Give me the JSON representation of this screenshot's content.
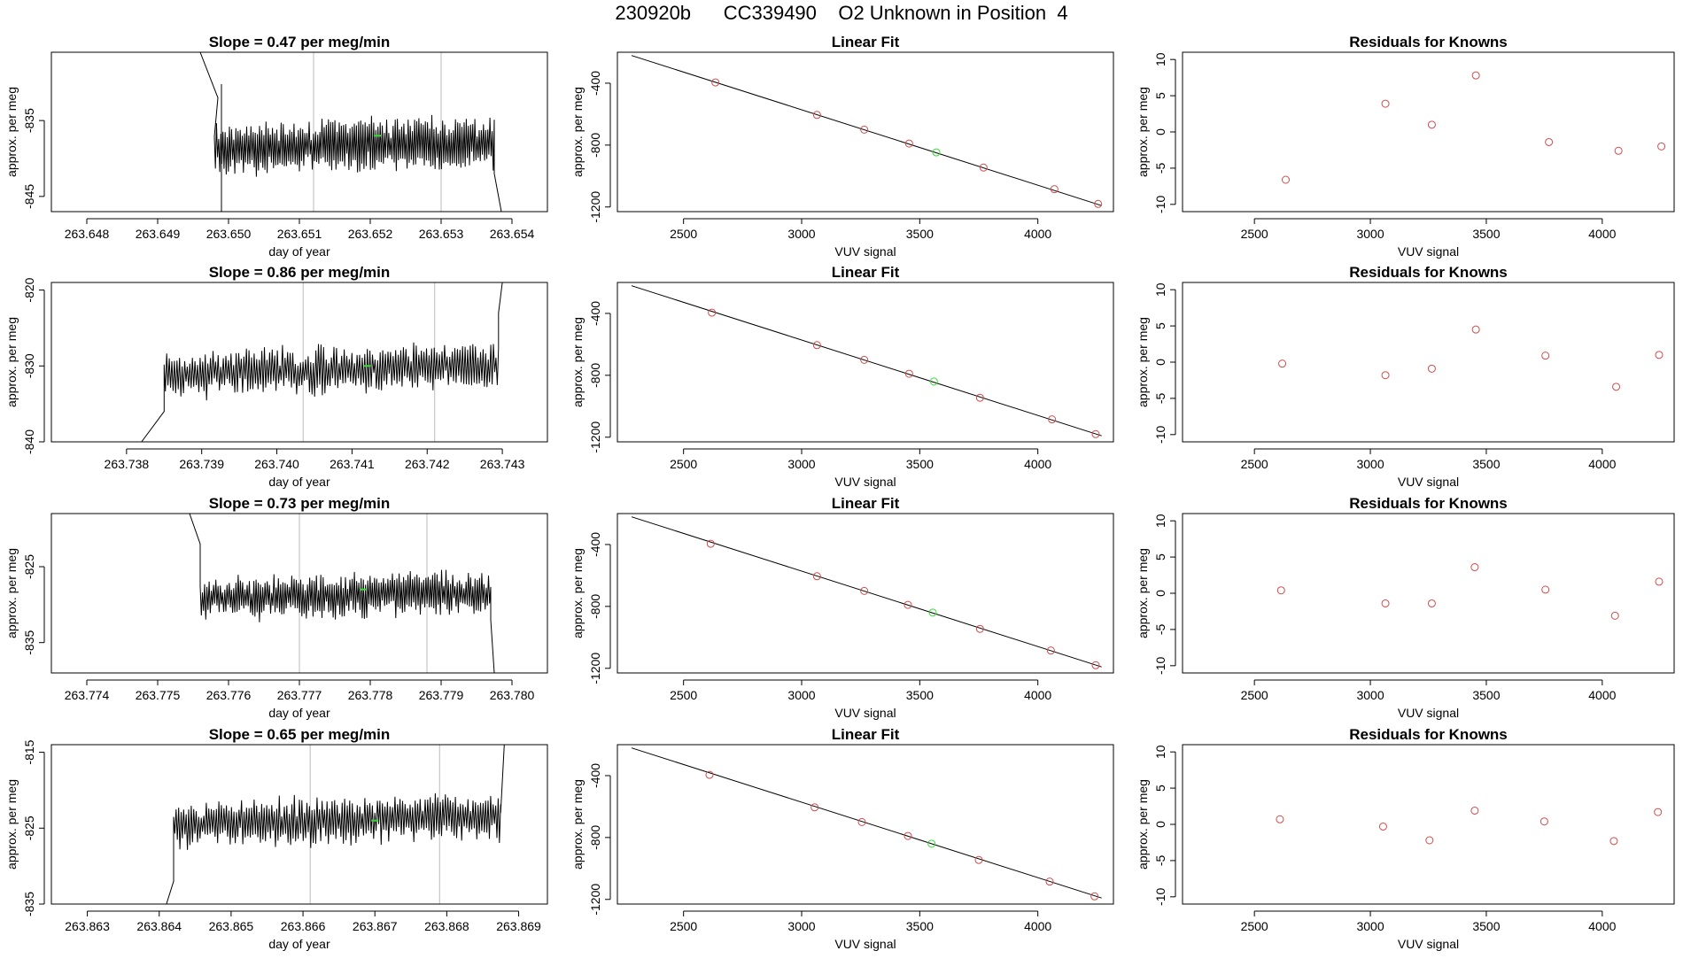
{
  "page": {
    "title": "230920b      CC339490    O2 Unknown in Position  4"
  },
  "colors": {
    "series": "#000000",
    "known": "#d14b4b",
    "unknown": "#33dd33",
    "vline": "#bbbbbb",
    "axis": "#000000"
  },
  "chart_data": [
    {
      "type": "line",
      "title": "Slope =  0.47  per meg/min",
      "xlabel": "day of year",
      "ylabel": "approx. per meg",
      "xlim": [
        263.6475,
        263.6545
      ],
      "ylim": [
        -847,
        -826
      ],
      "xticks": [
        263.648,
        263.649,
        263.65,
        263.651,
        263.652,
        263.653,
        263.654
      ],
      "xtick_labels": [
        "263.648",
        "263.649",
        "263.650",
        "263.651",
        "263.652",
        "263.653",
        "263.654"
      ],
      "yticks": [
        -845,
        -835
      ],
      "ytick_labels": [
        "-845",
        "-835"
      ],
      "trace": {
        "x_start": 263.6498,
        "x_end": 263.65375,
        "mean": -838.2,
        "trend": 0.8,
        "amp": 3.2,
        "seed": 11
      },
      "entry": {
        "x": [
          263.6496,
          263.64985
        ],
        "y": [
          -826,
          -832
        ]
      },
      "exit": {
        "x": [
          263.65375,
          263.65385
        ],
        "y": [
          -842,
          -847
        ]
      },
      "vlines": [
        263.6512,
        263.653
      ],
      "drop_lines": [
        263.6499
      ],
      "marker": {
        "x": 263.6521,
        "y": -837
      }
    },
    {
      "type": "scatter",
      "title": "Linear Fit",
      "xlabel": "VUV signal",
      "ylabel": "approx. per meg",
      "xlim": [
        2220,
        4320
      ],
      "ylim": [
        -1230,
        -200
      ],
      "xticks": [
        2500,
        3000,
        3500,
        4000
      ],
      "xtick_labels": [
        "2500",
        "3000",
        "3500",
        "4000"
      ],
      "yticks": [
        -1200,
        -800,
        -400
      ],
      "ytick_labels": [
        "-1200",
        "-800",
        "-400"
      ],
      "fit_line": {
        "x": [
          2280,
          4270
        ],
        "y": [
          -221,
          -1191
        ]
      },
      "knowns": {
        "x": [
          2635,
          3065,
          3265,
          3455,
          3770,
          4070,
          4255
        ],
        "y": [
          -395,
          -605,
          -700,
          -790,
          -945,
          -1085,
          -1180
        ]
      },
      "unknown": {
        "x": [
          3570
        ],
        "y": [
          -847
        ]
      }
    },
    {
      "type": "scatter",
      "title": "Residuals for Knowns",
      "xlabel": "VUV signal",
      "ylabel": "approx. per meg",
      "xlim": [
        2190,
        4310
      ],
      "ylim": [
        -11,
        11
      ],
      "xticks": [
        2500,
        3000,
        3500,
        4000
      ],
      "xtick_labels": [
        "2500",
        "3000",
        "3500",
        "4000"
      ],
      "yticks": [
        -10,
        -5,
        0,
        5,
        10
      ],
      "ytick_labels": [
        "-10",
        "-5",
        "0",
        "5",
        "10"
      ],
      "points": {
        "x": [
          2635,
          3065,
          3265,
          3455,
          3770,
          4070,
          4255
        ],
        "y": [
          -6.6,
          3.9,
          1.0,
          7.8,
          -1.4,
          -2.6,
          -2.0
        ]
      }
    },
    {
      "type": "line",
      "title": "Slope =  0.86  per meg/min",
      "xlabel": "day of year",
      "ylabel": "approx. per meg",
      "xlim": [
        263.737,
        263.7436
      ],
      "ylim": [
        -840,
        -819
      ],
      "xticks": [
        263.738,
        263.739,
        263.74,
        263.741,
        263.742,
        263.743
      ],
      "xtick_labels": [
        "263.738",
        "263.739",
        "263.740",
        "263.741",
        "263.742",
        "263.743"
      ],
      "yticks": [
        -840,
        -830,
        -820
      ],
      "ytick_labels": [
        "-840",
        "-830",
        "-820"
      ],
      "trace": {
        "x_start": 263.7385,
        "x_end": 263.74295,
        "mean": -830.5,
        "trend": 1.5,
        "amp": 2.8,
        "seed": 23
      },
      "entry": {
        "x": [
          263.7376,
          263.7382,
          263.7385
        ],
        "y": [
          -840,
          -840,
          -836
        ]
      },
      "exit": {
        "x": [
          263.74295,
          263.743
        ],
        "y": [
          -823,
          -819
        ]
      },
      "vlines": [
        263.74035,
        263.7421
      ],
      "drop_lines": [],
      "marker": {
        "x": 263.7412,
        "y": -830
      }
    },
    {
      "type": "scatter",
      "title": "Linear Fit",
      "xlabel": "VUV signal",
      "ylabel": "approx. per meg",
      "xlim": [
        2220,
        4320
      ],
      "ylim": [
        -1230,
        -200
      ],
      "xticks": [
        2500,
        3000,
        3500,
        4000
      ],
      "xtick_labels": [
        "2500",
        "3000",
        "3500",
        "4000"
      ],
      "yticks": [
        -1200,
        -800,
        -400
      ],
      "ytick_labels": [
        "-1200",
        "-800",
        "-400"
      ],
      "fit_line": {
        "x": [
          2280,
          4270
        ],
        "y": [
          -221,
          -1191
        ]
      },
      "knowns": {
        "x": [
          2620,
          3065,
          3265,
          3455,
          3755,
          4060,
          4245
        ],
        "y": [
          -395,
          -605,
          -700,
          -790,
          -945,
          -1085,
          -1180
        ]
      },
      "unknown": {
        "x": [
          3560
        ],
        "y": [
          -840
        ]
      }
    },
    {
      "type": "scatter",
      "title": "Residuals for Knowns",
      "xlabel": "VUV signal",
      "ylabel": "approx. per meg",
      "xlim": [
        2190,
        4310
      ],
      "ylim": [
        -11,
        11
      ],
      "xticks": [
        2500,
        3000,
        3500,
        4000
      ],
      "xtick_labels": [
        "2500",
        "3000",
        "3500",
        "4000"
      ],
      "yticks": [
        -10,
        -5,
        0,
        5,
        10
      ],
      "ytick_labels": [
        "-10",
        "-5",
        "0",
        "5",
        "10"
      ],
      "points": {
        "x": [
          2620,
          3065,
          3265,
          3455,
          3755,
          4060,
          4245
        ],
        "y": [
          -0.2,
          -1.8,
          -0.9,
          4.5,
          0.9,
          -3.4,
          1.0
        ]
      }
    },
    {
      "type": "line",
      "title": "Slope =  0.73  per meg/min",
      "xlabel": "day of year",
      "ylabel": "approx. per meg",
      "xlim": [
        263.7735,
        263.7805
      ],
      "ylim": [
        -839,
        -818
      ],
      "xticks": [
        263.774,
        263.775,
        263.776,
        263.777,
        263.778,
        263.779,
        263.78
      ],
      "xtick_labels": [
        "263.774",
        "263.775",
        "263.776",
        "263.777",
        "263.778",
        "263.779",
        "263.780"
      ],
      "yticks": [
        -835,
        -825
      ],
      "ytick_labels": [
        "-835",
        "-825"
      ],
      "trace": {
        "x_start": 263.7756,
        "x_end": 263.7797,
        "mean": -828.8,
        "trend": 1.0,
        "amp": 2.6,
        "seed": 37
      },
      "entry": {
        "x": [
          263.77545,
          263.7756
        ],
        "y": [
          -818,
          -822
        ]
      },
      "exit": {
        "x": [
          263.7797,
          263.77975
        ],
        "y": [
          -832,
          -839
        ]
      },
      "vlines": [
        263.777,
        263.7788
      ],
      "drop_lines": [],
      "marker": {
        "x": 263.7779,
        "y": -828
      }
    },
    {
      "type": "scatter",
      "title": "Linear Fit",
      "xlabel": "VUV signal",
      "ylabel": "approx. per meg",
      "xlim": [
        2220,
        4320
      ],
      "ylim": [
        -1230,
        -200
      ],
      "xticks": [
        2500,
        3000,
        3500,
        4000
      ],
      "xtick_labels": [
        "2500",
        "3000",
        "3500",
        "4000"
      ],
      "yticks": [
        -1200,
        -800,
        -400
      ],
      "ytick_labels": [
        "-1200",
        "-800",
        "-400"
      ],
      "fit_line": {
        "x": [
          2280,
          4270
        ],
        "y": [
          -221,
          -1191
        ]
      },
      "knowns": {
        "x": [
          2615,
          3065,
          3265,
          3450,
          3755,
          4055,
          4245
        ],
        "y": [
          -395,
          -605,
          -700,
          -790,
          -945,
          -1085,
          -1180
        ]
      },
      "unknown": {
        "x": [
          3555
        ],
        "y": [
          -840
        ]
      }
    },
    {
      "type": "scatter",
      "title": "Residuals for Knowns",
      "xlabel": "VUV signal",
      "ylabel": "approx. per meg",
      "xlim": [
        2190,
        4310
      ],
      "ylim": [
        -11,
        11
      ],
      "xticks": [
        2500,
        3000,
        3500,
        4000
      ],
      "xtick_labels": [
        "2500",
        "3000",
        "3500",
        "4000"
      ],
      "yticks": [
        -10,
        -5,
        0,
        5,
        10
      ],
      "ytick_labels": [
        "-10",
        "-5",
        "0",
        "5",
        "10"
      ],
      "points": {
        "x": [
          2615,
          3065,
          3265,
          3450,
          3755,
          4055,
          4245
        ],
        "y": [
          0.4,
          -1.4,
          -1.4,
          3.6,
          0.5,
          -3.1,
          1.6
        ]
      }
    },
    {
      "type": "line",
      "title": "Slope =  0.65  per meg/min",
      "xlabel": "day of year",
      "ylabel": "approx. per meg",
      "xlim": [
        263.8625,
        263.8694
      ],
      "ylim": [
        -835,
        -814
      ],
      "xticks": [
        263.863,
        263.864,
        263.865,
        263.866,
        263.867,
        263.868,
        263.869
      ],
      "xtick_labels": [
        "263.863",
        "263.864",
        "263.865",
        "263.866",
        "263.867",
        "263.868",
        "263.869"
      ],
      "yticks": [
        -835,
        -825,
        -815
      ],
      "ytick_labels": [
        "-835",
        "-825",
        "-815"
      ],
      "trace": {
        "x_start": 263.8642,
        "x_end": 263.86875,
        "mean": -824.0,
        "trend": 1.0,
        "amp": 2.8,
        "seed": 53
      },
      "entry": {
        "x": [
          263.8641,
          263.8642
        ],
        "y": [
          -835,
          -832
        ]
      },
      "exit": {
        "x": [
          263.86875,
          263.8688
        ],
        "y": [
          -823,
          -814
        ]
      },
      "vlines": [
        263.8661,
        263.8679
      ],
      "drop_lines": [],
      "marker": {
        "x": 263.867,
        "y": -824
      }
    },
    {
      "type": "scatter",
      "title": "Linear Fit",
      "xlabel": "VUV signal",
      "ylabel": "approx. per meg",
      "xlim": [
        2220,
        4320
      ],
      "ylim": [
        -1230,
        -200
      ],
      "xticks": [
        2500,
        3000,
        3500,
        4000
      ],
      "xtick_labels": [
        "2500",
        "3000",
        "3500",
        "4000"
      ],
      "yticks": [
        -1200,
        -800,
        -400
      ],
      "ytick_labels": [
        "-1200",
        "-800",
        "-400"
      ],
      "fit_line": {
        "x": [
          2280,
          4270
        ],
        "y": [
          -221,
          -1191
        ]
      },
      "knowns": {
        "x": [
          2610,
          3055,
          3255,
          3450,
          3750,
          4050,
          4240
        ],
        "y": [
          -395,
          -605,
          -700,
          -790,
          -945,
          -1085,
          -1180
        ]
      },
      "unknown": {
        "x": [
          3550
        ],
        "y": [
          -840
        ]
      }
    },
    {
      "type": "scatter",
      "title": "Residuals for Knowns",
      "xlabel": "VUV signal",
      "ylabel": "approx. per meg",
      "xlim": [
        2190,
        4310
      ],
      "ylim": [
        -11,
        11
      ],
      "xticks": [
        2500,
        3000,
        3500,
        4000
      ],
      "xtick_labels": [
        "2500",
        "3000",
        "3500",
        "4000"
      ],
      "yticks": [
        -10,
        -5,
        0,
        5,
        10
      ],
      "ytick_labels": [
        "-10",
        "-5",
        "0",
        "5",
        "10"
      ],
      "points": {
        "x": [
          2610,
          3055,
          3255,
          3450,
          3750,
          4050,
          4240
        ],
        "y": [
          0.7,
          -0.3,
          -2.2,
          1.9,
          0.4,
          -2.3,
          1.7
        ]
      }
    }
  ]
}
